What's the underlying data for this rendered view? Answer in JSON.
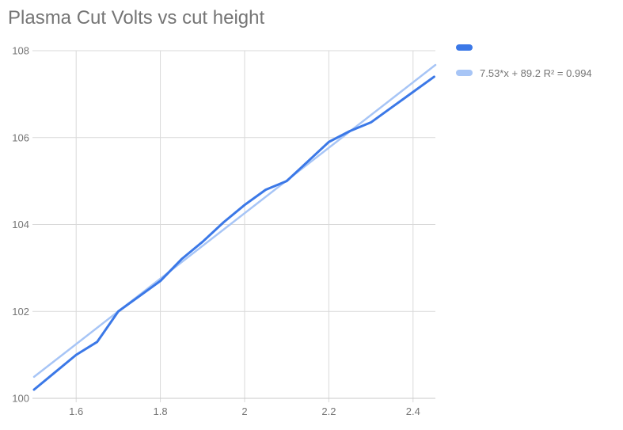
{
  "chart_data": {
    "type": "line",
    "title": "Plasma Cut Volts vs cut height",
    "xlabel": "",
    "ylabel": "",
    "xlim": [
      1.5,
      2.453
    ],
    "ylim": [
      100,
      108
    ],
    "x_ticks": [
      1.6,
      1.8,
      2,
      2.2,
      2.4
    ],
    "y_ticks": [
      100,
      102,
      104,
      106,
      108
    ],
    "grid": true,
    "legend_position": "top-right",
    "x": [
      1.5,
      1.55,
      1.6,
      1.65,
      1.7,
      1.75,
      1.8,
      1.85,
      1.9,
      1.95,
      2.0,
      2.05,
      2.1,
      2.15,
      2.2,
      2.25,
      2.3,
      2.35,
      2.4,
      2.45
    ],
    "series": [
      {
        "name": "",
        "color": "#3b78e7",
        "values": [
          100.2,
          100.6,
          101.0,
          101.3,
          102.0,
          102.35,
          102.7,
          103.2,
          103.6,
          104.05,
          104.45,
          104.8,
          105.0,
          105.45,
          105.9,
          106.15,
          106.35,
          106.7,
          107.05,
          107.4
        ]
      }
    ],
    "trendline": {
      "label": "7.53*x + 89.2 R² = 0.994",
      "slope": 7.53,
      "intercept": 89.2,
      "r_squared": 0.994,
      "color": "#a7c5f6"
    },
    "colors": {
      "gridline": "#d9d9d9",
      "axis_line": "#c9c9c9",
      "tick_label": "#757575",
      "title": "#757575"
    }
  },
  "legend": {
    "items": [
      {
        "label": "",
        "color": "#3b78e7"
      },
      {
        "label": "7.53*x + 89.2 R² = 0.994",
        "color": "#a7c5f6"
      }
    ]
  }
}
